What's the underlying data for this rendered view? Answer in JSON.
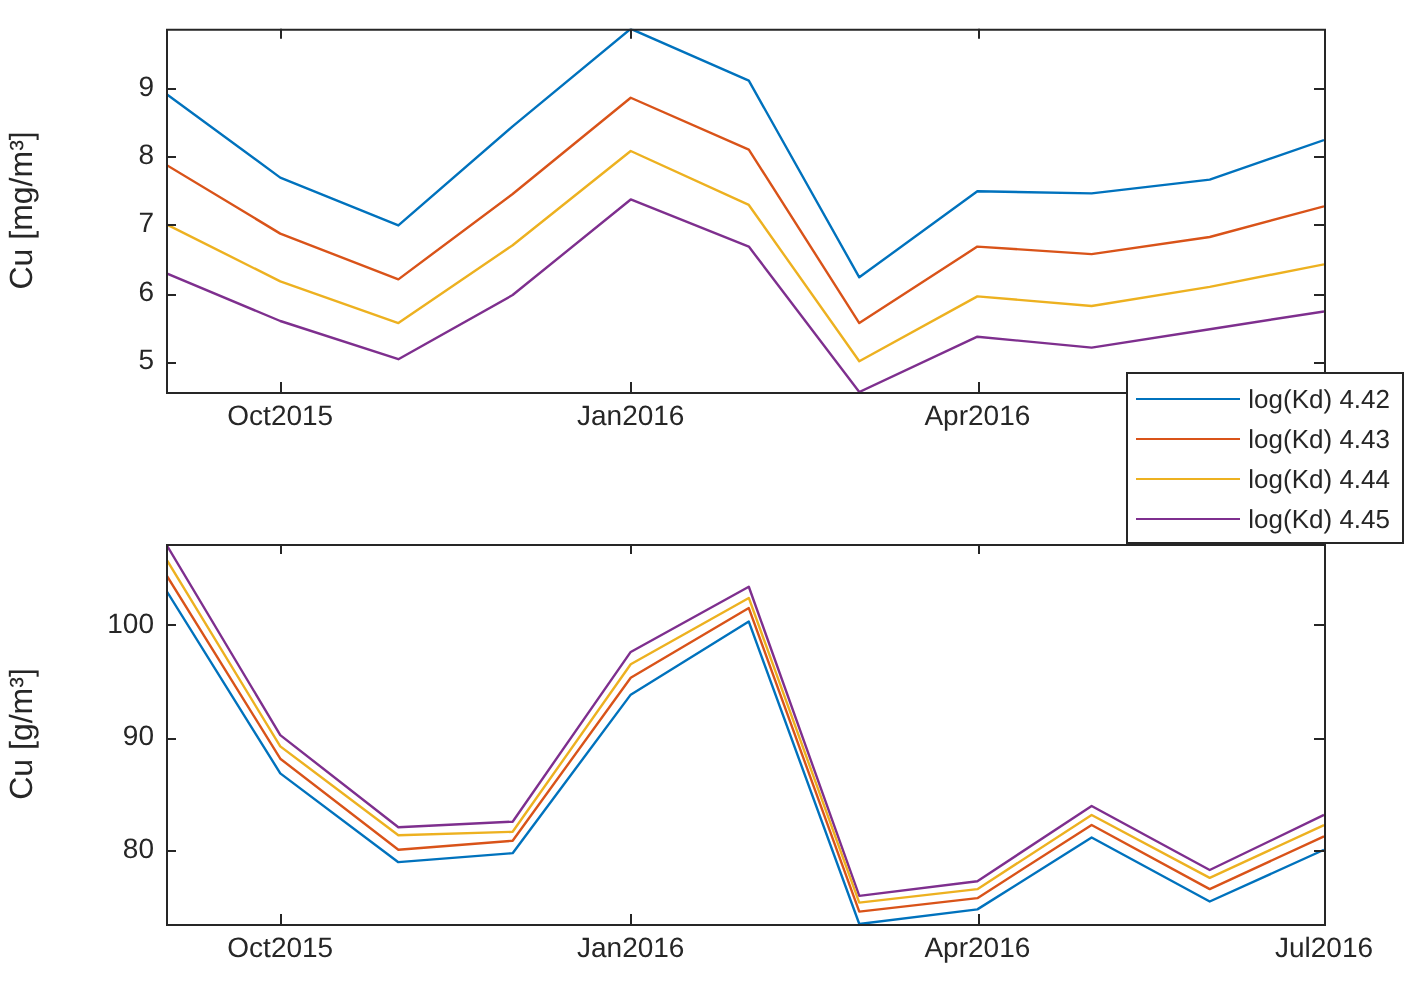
{
  "chart_data": [
    {
      "type": "line",
      "ylabel": "Cu [mg/m³]",
      "x": [
        "2015-09-01",
        "2015-10-01",
        "2015-11-01",
        "2015-12-01",
        "2016-01-01",
        "2016-02-01",
        "2016-03-01",
        "2016-04-01",
        "2016-05-01",
        "2016-06-01",
        "2016-07-01"
      ],
      "xlim": [
        "2015-09-01",
        "2016-07-01"
      ],
      "xticks": [
        {
          "value": "2015-10-01",
          "label": "Oct2015"
        },
        {
          "value": "2016-01-01",
          "label": "Jan2016"
        },
        {
          "value": "2016-04-01",
          "label": "Apr2016"
        }
      ],
      "ylim": [
        4.55,
        9.87
      ],
      "yticks": [
        5,
        6,
        7,
        8,
        9
      ],
      "grid": false,
      "legend": "bottom right",
      "marker": "none",
      "line_style": "solid",
      "series": [
        {
          "name": "log(Kd) 4.42",
          "color": "#0072bd",
          "values": [
            8.92,
            7.69,
            6.99,
            8.44,
            9.87,
            9.11,
            6.23,
            7.49,
            7.46,
            7.66,
            8.24
          ]
        },
        {
          "name": "log(Kd) 4.43",
          "color": "#d95319",
          "values": [
            7.88,
            6.87,
            6.2,
            7.45,
            8.86,
            8.1,
            5.56,
            6.68,
            6.57,
            6.82,
            7.27
          ]
        },
        {
          "name": "log(Kd) 4.44",
          "color": "#edb120",
          "values": [
            7.01,
            6.17,
            5.56,
            6.7,
            8.08,
            7.29,
            5.0,
            5.95,
            5.81,
            6.09,
            6.42
          ]
        },
        {
          "name": "log(Kd) 4.45",
          "color": "#7e2f8e",
          "values": [
            6.29,
            5.59,
            5.03,
            5.97,
            7.37,
            6.68,
            4.55,
            5.36,
            5.2,
            5.47,
            5.73
          ]
        }
      ]
    },
    {
      "type": "line",
      "ylabel": "Cu [g/m³]",
      "x": [
        "2015-09-01",
        "2015-10-01",
        "2015-11-01",
        "2015-12-01",
        "2016-01-01",
        "2016-02-01",
        "2016-03-01",
        "2016-04-01",
        "2016-05-01",
        "2016-06-01",
        "2016-07-01"
      ],
      "xlim": [
        "2015-09-01",
        "2016-07-01"
      ],
      "xticks": [
        {
          "value": "2015-10-01",
          "label": "Oct2015"
        },
        {
          "value": "2016-01-01",
          "label": "Jan2016"
        },
        {
          "value": "2016-04-01",
          "label": "Apr2016"
        },
        {
          "value": "2016-07-01",
          "label": "Jul2016"
        }
      ],
      "ylim": [
        73.4,
        107.2
      ],
      "yticks": [
        80,
        90,
        100
      ],
      "grid": false,
      "marker": "none",
      "line_style": "solid",
      "series": [
        {
          "color": "#0072bd",
          "values": [
            103.1,
            86.8,
            78.9,
            79.7,
            93.8,
            100.3,
            73.4,
            74.7,
            81.1,
            75.4,
            80.0
          ]
        },
        {
          "color": "#d95319",
          "values": [
            104.5,
            88.1,
            80.0,
            80.8,
            95.3,
            101.5,
            74.5,
            75.7,
            82.2,
            76.5,
            81.2
          ]
        },
        {
          "color": "#edb120",
          "values": [
            105.9,
            89.2,
            81.3,
            81.6,
            96.5,
            102.4,
            75.3,
            76.5,
            83.1,
            77.5,
            82.2
          ]
        },
        {
          "color": "#7e2f8e",
          "values": [
            107.2,
            90.2,
            82.0,
            82.5,
            97.6,
            103.4,
            75.9,
            77.2,
            83.9,
            78.2,
            83.1
          ]
        }
      ]
    }
  ]
}
